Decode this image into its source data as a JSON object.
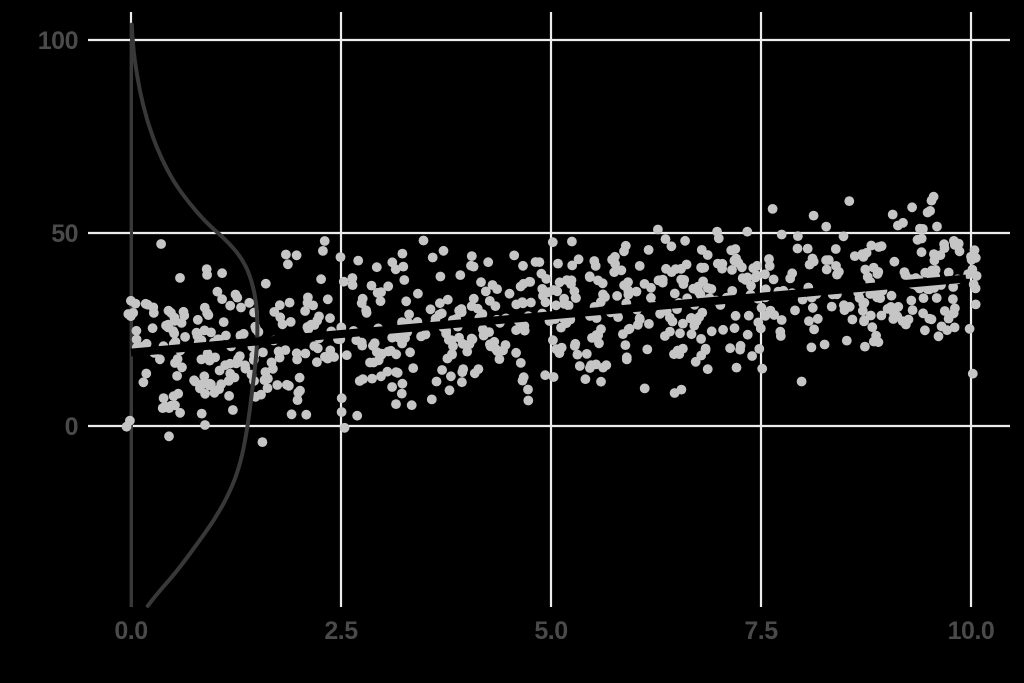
{
  "chart_data": {
    "type": "scatter",
    "title": "",
    "xlabel": "",
    "ylabel": "",
    "legend": "none",
    "grid": true,
    "xlim": [
      -0.51,
      10.46
    ],
    "ylim": [
      -46.9,
      107.3
    ],
    "x_ticks": [
      {
        "label": "0.0",
        "value": 0
      },
      {
        "label": "2.5",
        "value": 2.5
      },
      {
        "label": "5.0",
        "value": 5
      },
      {
        "label": "7.5",
        "value": 7.5
      },
      {
        "label": "10.0",
        "value": 10
      }
    ],
    "y_ticks": [
      {
        "label": "100",
        "value": 100
      },
      {
        "label": "50",
        "value": 50
      },
      {
        "label": "0",
        "value": 0
      }
    ],
    "points_model": {
      "n": 750,
      "x_min": -0.06,
      "x_max": 10.08,
      "intercept": 19,
      "slope": 1.93,
      "noise_sd": 9.8,
      "max_abs_z": 2.95,
      "seed": 11
    },
    "regression_line": {
      "x": [
        0,
        9.94
      ],
      "y": [
        19,
        38.2
      ]
    },
    "zero_vline": {
      "x": 0,
      "y_from": 104,
      "y_to": -46.9
    },
    "density_curve": {
      "points": [
        [
          0.01,
          104
        ],
        [
          0.02,
          98.7
        ],
        [
          0.07,
          90.9
        ],
        [
          0.14,
          83.2
        ],
        [
          0.24,
          75.9
        ],
        [
          0.36,
          69.4
        ],
        [
          0.51,
          63.2
        ],
        [
          0.69,
          57.8
        ],
        [
          0.9,
          52.6
        ],
        [
          1.13,
          48.2
        ],
        [
          1.31,
          43.8
        ],
        [
          1.42,
          38.9
        ],
        [
          1.49,
          32.6
        ],
        [
          1.51,
          25.4
        ],
        [
          1.49,
          17.6
        ],
        [
          1.44,
          8.8
        ],
        [
          1.39,
          0
        ],
        [
          1.31,
          -9.3
        ],
        [
          1.18,
          -17.1
        ],
        [
          0.99,
          -24.4
        ],
        [
          0.77,
          -31.1
        ],
        [
          0.54,
          -37.8
        ],
        [
          0.31,
          -43.5
        ],
        [
          0.2,
          -46.6
        ]
      ]
    }
  },
  "style": {
    "background": "#000000",
    "grid_color": "#ececec",
    "point_color": "#c5c5c5",
    "regression_color": "#000000",
    "curve_color": "#383838",
    "vline_color": "#383838",
    "label_color": "#4a4a4a"
  }
}
